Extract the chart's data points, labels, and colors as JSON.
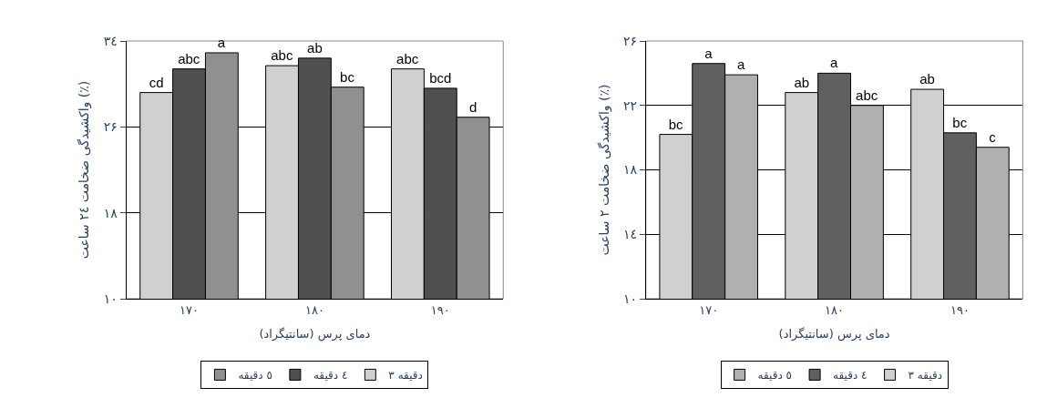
{
  "chart_data": [
    {
      "type": "bar",
      "xlabel": "دمای پرس (سانتیگراد)",
      "ylabel": "واکشیدگی ضخامت ۲٤ ساعت (٪)",
      "categories": [
        "۱۷۰",
        "۱۸۰",
        "۱۹۰"
      ],
      "series": [
        {
          "name": "۳ دقیقه",
          "color": "#d0d0d0",
          "values": [
            29.2,
            31.7,
            31.4
          ],
          "value_labels": [
            "cd",
            "abc",
            "abc"
          ]
        },
        {
          "name": "٤ دقیقه",
          "color": "#505050",
          "values": [
            31.4,
            32.4,
            29.6
          ],
          "value_labels": [
            "abc",
            "ab",
            "bcd"
          ]
        },
        {
          "name": "٥ دقیقه",
          "color": "#909090",
          "values": [
            32.9,
            29.7,
            26.9
          ],
          "value_labels": [
            "a",
            "bc",
            "d"
          ]
        }
      ],
      "ylim": [
        10,
        34
      ],
      "yticks": [
        {
          "value": 10,
          "label": "۱۰"
        },
        {
          "value": 18,
          "label": "۱۸"
        },
        {
          "value": 26,
          "label": "۲۶"
        },
        {
          "value": 34,
          "label": "۳٤"
        }
      ],
      "grid": "y",
      "legend": "bottom"
    },
    {
      "type": "bar",
      "xlabel": "دمای پرس (سانتیگراد)",
      "ylabel": "واکشیدگی ضخامت ۲ ساعت (٪)",
      "categories": [
        "۱۷۰",
        "۱۸۰",
        "۱۹۰"
      ],
      "series": [
        {
          "name": "۳ دقیقه",
          "color": "#d0d0d0",
          "values": [
            20.2,
            22.8,
            23.0
          ],
          "value_labels": [
            "bc",
            "ab",
            "ab"
          ]
        },
        {
          "name": "٤ دقیقه",
          "color": "#606060",
          "values": [
            24.6,
            24.0,
            20.3
          ],
          "value_labels": [
            "a",
            "a",
            "bc"
          ]
        },
        {
          "name": "٥ دقیقه",
          "color": "#b0b0b0",
          "values": [
            23.9,
            22.0,
            19.4
          ],
          "value_labels": [
            "a",
            "abc",
            "c"
          ]
        }
      ],
      "ylim": [
        10,
        26
      ],
      "yticks": [
        {
          "value": 10,
          "label": "۱۰"
        },
        {
          "value": 14,
          "label": "۱٤"
        },
        {
          "value": 18,
          "label": "۱۸"
        },
        {
          "value": 22,
          "label": "۲۲"
        },
        {
          "value": 26,
          "label": "۲۶"
        }
      ],
      "grid": "y",
      "legend": "bottom"
    }
  ]
}
